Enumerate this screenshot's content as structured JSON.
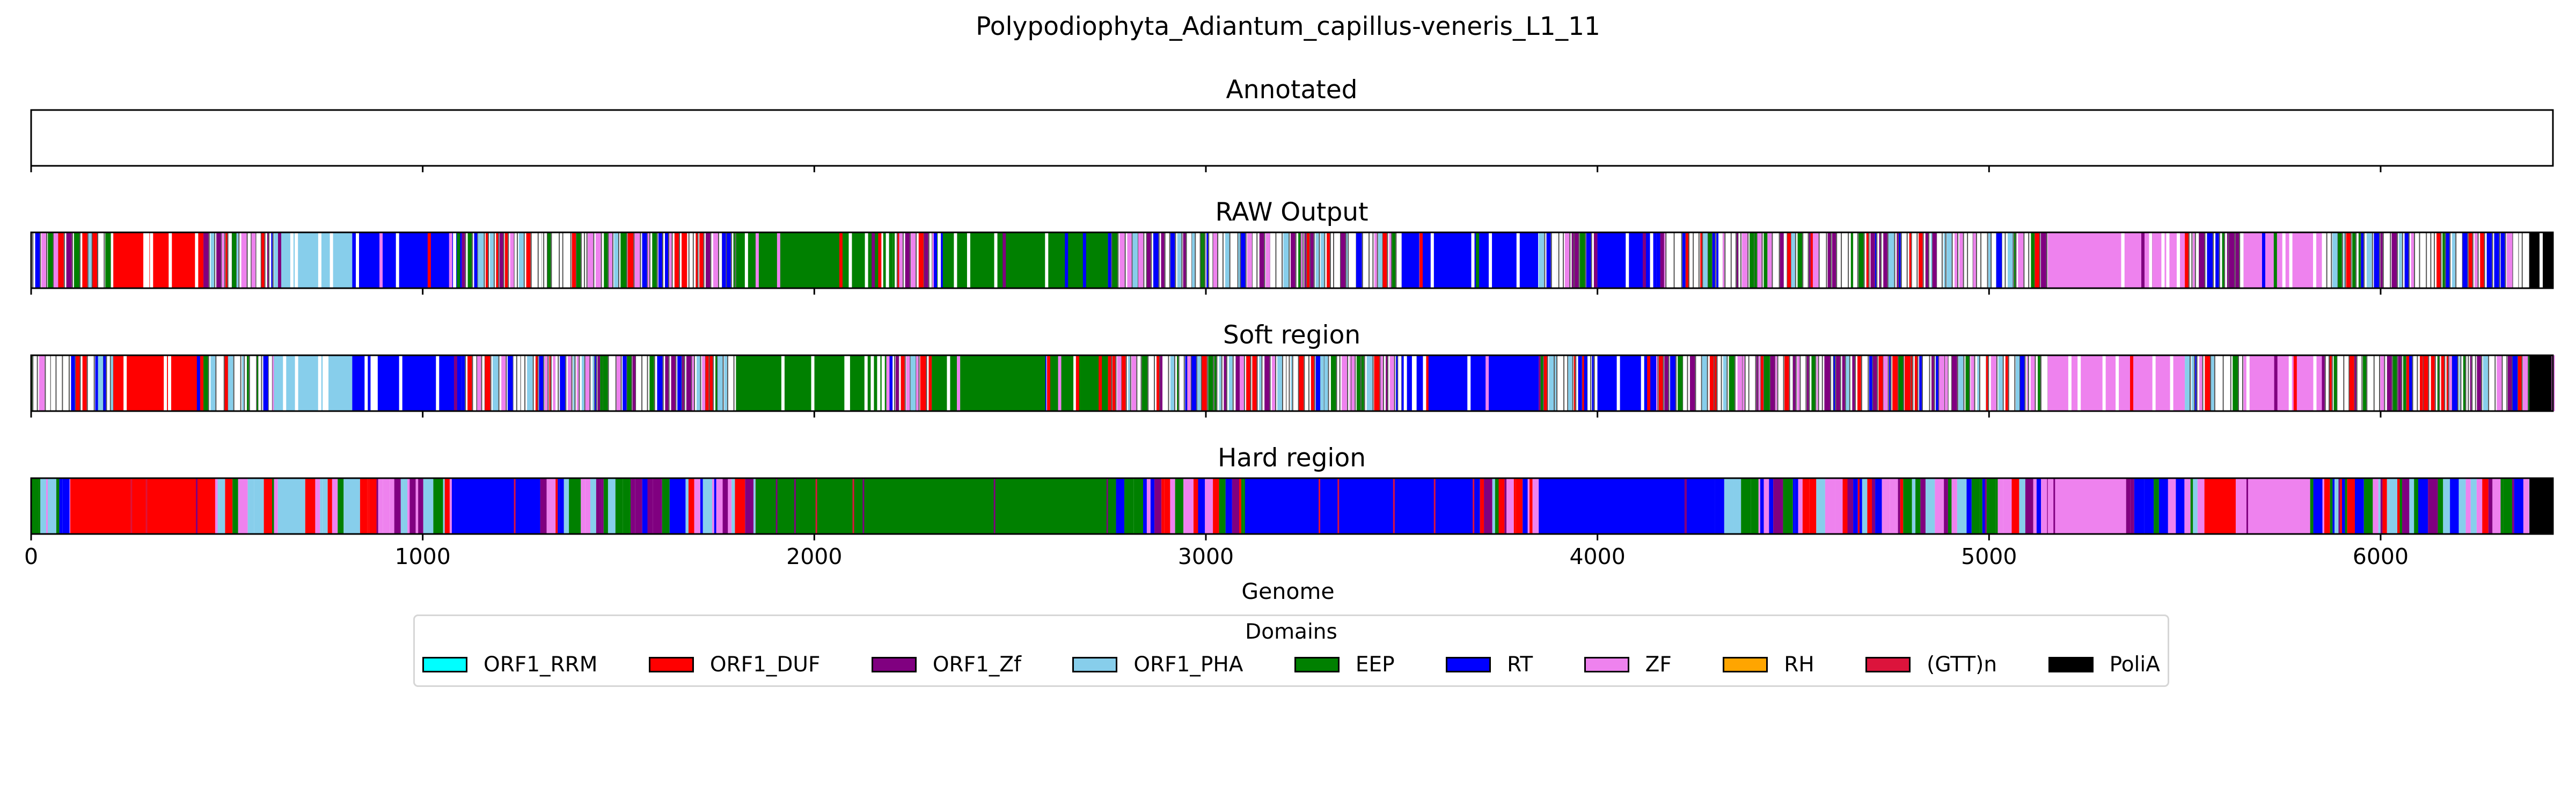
{
  "title": "Polypodiophyta_Adiantum_capillus-veneris_L1_11",
  "domain_colors": {
    "ORF1_RRM": "#00ffff",
    "ORF1_DUF": "#ff0000",
    "ORF1_Zf": "#800080",
    "ORF1_PHA": "#87ceeb",
    "EEP": "#008000",
    "RT": "#0000ff",
    "ZF": "#ee82ee",
    "RH": "#ffa500",
    "(GTT)n": "#dc143c",
    "PoliA": "#000000"
  },
  "legend": {
    "title": "Domains",
    "items": [
      {
        "label": "ORF1_RRM",
        "color": "#00ffff"
      },
      {
        "label": "ORF1_DUF",
        "color": "#ff0000"
      },
      {
        "label": "ORF1_Zf",
        "color": "#800080"
      },
      {
        "label": "ORF1_PHA",
        "color": "#87ceeb"
      },
      {
        "label": "EEP",
        "color": "#008000"
      },
      {
        "label": "RT",
        "color": "#0000ff"
      },
      {
        "label": "ZF",
        "color": "#ee82ee"
      },
      {
        "label": "RH",
        "color": "#ffa500"
      },
      {
        "label": "(GTT)n",
        "color": "#dc143c"
      },
      {
        "label": "PoliA",
        "color": "#000000"
      }
    ]
  },
  "chart_data": [
    {
      "type": "bar",
      "title": "Annotated",
      "xlim": [
        0,
        6440
      ],
      "segments": []
    },
    {
      "type": "bar",
      "title": "RAW Output",
      "xlim": [
        0,
        6440
      ],
      "segments": [
        {
          "start": 0,
          "end": 210,
          "domain": "mixed"
        },
        {
          "start": 210,
          "end": 440,
          "domain": "ORF1_DUF"
        },
        {
          "start": 440,
          "end": 620,
          "domain": "mixed"
        },
        {
          "start": 620,
          "end": 820,
          "domain": "ORF1_PHA"
        },
        {
          "start": 820,
          "end": 1100,
          "domain": "RT"
        },
        {
          "start": 1100,
          "end": 1800,
          "domain": "mixed"
        },
        {
          "start": 1800,
          "end": 2200,
          "domain": "EEP"
        },
        {
          "start": 2200,
          "end": 2300,
          "domain": "mixed"
        },
        {
          "start": 2300,
          "end": 2750,
          "domain": "EEP"
        },
        {
          "start": 2750,
          "end": 3500,
          "domain": "mixed"
        },
        {
          "start": 3500,
          "end": 3850,
          "domain": "RT"
        },
        {
          "start": 3850,
          "end": 4000,
          "domain": "mixed"
        },
        {
          "start": 4000,
          "end": 4150,
          "domain": "RT"
        },
        {
          "start": 4150,
          "end": 5150,
          "domain": "mixed"
        },
        {
          "start": 5150,
          "end": 5500,
          "domain": "ZF"
        },
        {
          "start": 5500,
          "end": 5650,
          "domain": "mixed"
        },
        {
          "start": 5650,
          "end": 5850,
          "domain": "ZF"
        },
        {
          "start": 5850,
          "end": 6380,
          "domain": "mixed"
        },
        {
          "start": 6380,
          "end": 6440,
          "domain": "PoliA"
        }
      ]
    },
    {
      "type": "bar",
      "title": "Soft region",
      "xlim": [
        0,
        6440
      ],
      "segments": [
        {
          "start": 0,
          "end": 210,
          "domain": "mixed"
        },
        {
          "start": 210,
          "end": 440,
          "domain": "ORF1_DUF"
        },
        {
          "start": 440,
          "end": 620,
          "domain": "mixed"
        },
        {
          "start": 620,
          "end": 820,
          "domain": "ORF1_PHA"
        },
        {
          "start": 820,
          "end": 1100,
          "domain": "RT"
        },
        {
          "start": 1100,
          "end": 1800,
          "domain": "mixed"
        },
        {
          "start": 1800,
          "end": 2200,
          "domain": "EEP"
        },
        {
          "start": 2200,
          "end": 2300,
          "domain": "mixed"
        },
        {
          "start": 2300,
          "end": 2750,
          "domain": "EEP"
        },
        {
          "start": 2750,
          "end": 3500,
          "domain": "mixed"
        },
        {
          "start": 3500,
          "end": 3850,
          "domain": "RT"
        },
        {
          "start": 3850,
          "end": 4000,
          "domain": "mixed"
        },
        {
          "start": 4000,
          "end": 4150,
          "domain": "RT"
        },
        {
          "start": 4150,
          "end": 5150,
          "domain": "mixed"
        },
        {
          "start": 5150,
          "end": 5500,
          "domain": "ZF"
        },
        {
          "start": 5500,
          "end": 5650,
          "domain": "mixed"
        },
        {
          "start": 5650,
          "end": 5850,
          "domain": "ZF"
        },
        {
          "start": 5850,
          "end": 6380,
          "domain": "mixed"
        },
        {
          "start": 6380,
          "end": 6440,
          "domain": "PoliA"
        }
      ]
    },
    {
      "type": "bar",
      "title": "Hard region",
      "xlabel": "Genome",
      "xlim": [
        0,
        6440
      ],
      "xticks": [
        0,
        1000,
        2000,
        3000,
        4000,
        5000,
        6000
      ],
      "segments": [
        {
          "start": 0,
          "end": 100,
          "domain": "mixed"
        },
        {
          "start": 100,
          "end": 470,
          "domain": "ORF1_DUF"
        },
        {
          "start": 470,
          "end": 630,
          "domain": "mixed"
        },
        {
          "start": 630,
          "end": 700,
          "domain": "ORF1_PHA"
        },
        {
          "start": 700,
          "end": 800,
          "domain": "mixed"
        },
        {
          "start": 800,
          "end": 840,
          "domain": "ORF1_PHA"
        },
        {
          "start": 840,
          "end": 1080,
          "domain": "mixed"
        },
        {
          "start": 1080,
          "end": 1300,
          "domain": "RT"
        },
        {
          "start": 1300,
          "end": 1850,
          "domain": "mixed"
        },
        {
          "start": 1850,
          "end": 2750,
          "domain": "EEP"
        },
        {
          "start": 2750,
          "end": 3100,
          "domain": "mixed"
        },
        {
          "start": 3100,
          "end": 3700,
          "domain": "RT"
        },
        {
          "start": 3700,
          "end": 3850,
          "domain": "mixed"
        },
        {
          "start": 3850,
          "end": 4300,
          "domain": "RT"
        },
        {
          "start": 4300,
          "end": 5150,
          "domain": "mixed"
        },
        {
          "start": 5150,
          "end": 5350,
          "domain": "ZF"
        },
        {
          "start": 5350,
          "end": 5550,
          "domain": "mixed"
        },
        {
          "start": 5550,
          "end": 5630,
          "domain": "ORF1_DUF"
        },
        {
          "start": 5630,
          "end": 5820,
          "domain": "ZF"
        },
        {
          "start": 5820,
          "end": 6380,
          "domain": "mixed"
        },
        {
          "start": 6380,
          "end": 6440,
          "domain": "PoliA"
        }
      ]
    }
  ]
}
